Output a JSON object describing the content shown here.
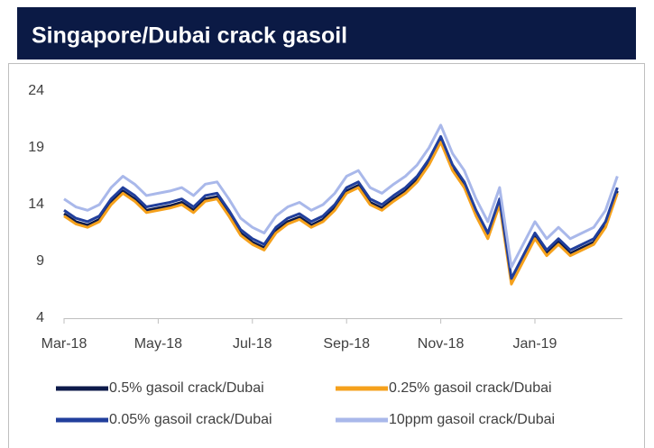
{
  "chart_data": {
    "type": "line",
    "title": "Singapore/Dubai crack gasoil",
    "categories": [
      "Mar-18",
      null,
      null,
      null,
      null,
      null,
      null,
      null,
      "May-18",
      null,
      null,
      null,
      null,
      null,
      null,
      null,
      "Jul-18",
      null,
      null,
      null,
      null,
      null,
      null,
      null,
      "Sep-18",
      null,
      null,
      null,
      null,
      null,
      null,
      null,
      "Nov-18",
      null,
      null,
      null,
      null,
      null,
      null,
      null,
      "Jan-19",
      null,
      null,
      null,
      null,
      null,
      null,
      null
    ],
    "series": [
      {
        "name": "0.5% gasoil crack/Dubai",
        "color": "#0d1a4a",
        "values": [
          13.2,
          12.5,
          12.2,
          12.7,
          14.2,
          15.2,
          14.5,
          13.5,
          13.7,
          13.9,
          14.2,
          13.5,
          14.5,
          14.7,
          13.2,
          11.5,
          10.7,
          10.2,
          11.7,
          12.5,
          12.9,
          12.2,
          12.7,
          13.7,
          15.2,
          15.7,
          14.2,
          13.7,
          14.5,
          15.2,
          16.2,
          17.7,
          19.7,
          17.2,
          15.7,
          13.2,
          11.2,
          14.2,
          7.2,
          9.2,
          11.2,
          9.7,
          10.7,
          9.7,
          10.2,
          10.7,
          12.2,
          15.2
        ]
      },
      {
        "name": "0.25% gasoil crack/Dubai",
        "color": "#f5a11c",
        "values": [
          13.0,
          12.3,
          12.0,
          12.5,
          14.0,
          15.0,
          14.3,
          13.3,
          13.5,
          13.7,
          14.0,
          13.3,
          14.3,
          14.5,
          13.0,
          11.3,
          10.5,
          10.0,
          11.5,
          12.3,
          12.7,
          12.0,
          12.5,
          13.5,
          15.0,
          15.5,
          14.0,
          13.5,
          14.3,
          15.0,
          16.0,
          17.5,
          19.5,
          17.0,
          15.5,
          13.0,
          11.0,
          14.0,
          7.0,
          9.0,
          11.0,
          9.5,
          10.5,
          9.5,
          10.0,
          10.5,
          12.0,
          15.0
        ]
      },
      {
        "name": "0.05% gasoil crack/Dubai",
        "color": "#213f9c",
        "values": [
          13.5,
          12.8,
          12.5,
          13.0,
          14.5,
          15.5,
          14.8,
          13.8,
          14.0,
          14.2,
          14.5,
          13.8,
          14.8,
          15.0,
          13.5,
          11.8,
          11.0,
          10.5,
          12.0,
          12.8,
          13.2,
          12.5,
          13.0,
          14.0,
          15.5,
          16.0,
          14.5,
          14.0,
          14.8,
          15.5,
          16.5,
          18.0,
          20.0,
          17.5,
          16.0,
          13.5,
          11.5,
          14.5,
          7.5,
          9.5,
          11.5,
          10.0,
          11.0,
          10.0,
          10.5,
          11.0,
          12.5,
          15.5
        ]
      },
      {
        "name": "10ppm gasoil crack/Dubai",
        "color": "#a9b8ea",
        "values": [
          14.5,
          13.8,
          13.5,
          14.0,
          15.5,
          16.5,
          15.8,
          14.8,
          15.0,
          15.2,
          15.5,
          14.8,
          15.8,
          16.0,
          14.5,
          12.8,
          12.0,
          11.5,
          13.0,
          13.8,
          14.2,
          13.5,
          14.0,
          15.0,
          16.5,
          17.0,
          15.5,
          15.0,
          15.8,
          16.5,
          17.5,
          19.0,
          21.0,
          18.5,
          17.0,
          14.5,
          12.5,
          15.5,
          8.5,
          10.5,
          12.5,
          11.0,
          12.0,
          11.0,
          11.5,
          12.0,
          13.5,
          16.5
        ]
      }
    ],
    "ylim": [
      4,
      24
    ],
    "yticks": [
      4,
      9,
      14,
      19,
      24
    ],
    "grid": false
  }
}
